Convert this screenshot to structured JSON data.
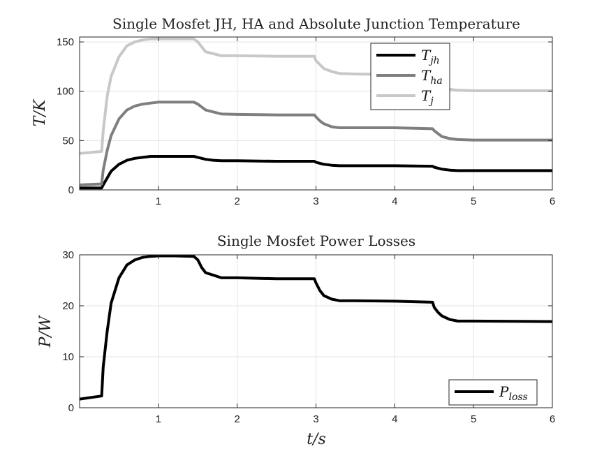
{
  "chart_data": [
    {
      "type": "line",
      "title": "Single Mosfet JH, HA and Absolute Junction Temperature",
      "ylabel": "T/K",
      "xlabel": "",
      "xlim": [
        0,
        6
      ],
      "ylim": [
        0,
        155
      ],
      "xticks": [
        1,
        2,
        3,
        4,
        5,
        6
      ],
      "yticks": [
        0,
        50,
        100,
        150
      ],
      "grid": true,
      "legend_position": "top-right",
      "series": [
        {
          "name": "T_jh",
          "label_main": "T",
          "label_sub": "jh",
          "color": "#000000",
          "x": [
            0,
            0.28,
            0.3,
            0.4,
            0.5,
            0.6,
            0.7,
            0.8,
            0.9,
            1.0,
            1.2,
            1.45,
            1.5,
            1.55,
            1.6,
            1.7,
            1.8,
            2.0,
            2.5,
            2.98,
            3.0,
            3.05,
            3.1,
            3.2,
            3.3,
            3.5,
            4.0,
            4.48,
            4.5,
            4.55,
            4.6,
            4.7,
            4.8,
            5.0,
            6.0
          ],
          "y": [
            2,
            2,
            5,
            19,
            26,
            30,
            32,
            33,
            34,
            34,
            34,
            34,
            33,
            32,
            31,
            30,
            29.5,
            29.5,
            29,
            29,
            28,
            27,
            26,
            25,
            24.5,
            24.5,
            24.5,
            24,
            23,
            22,
            21,
            20,
            19.5,
            19.5,
            19.5
          ]
        },
        {
          "name": "T_ha",
          "label_main": "T",
          "label_sub": "ha",
          "color": "#7f7f7f",
          "x": [
            0,
            0.28,
            0.3,
            0.35,
            0.4,
            0.5,
            0.6,
            0.7,
            0.8,
            0.9,
            1.0,
            1.2,
            1.45,
            1.5,
            1.55,
            1.6,
            1.7,
            1.8,
            2.0,
            2.5,
            2.98,
            3.0,
            3.05,
            3.1,
            3.2,
            3.3,
            3.5,
            4.0,
            4.48,
            4.5,
            4.55,
            4.6,
            4.7,
            4.8,
            5.0,
            6.0
          ],
          "y": [
            5,
            6,
            20,
            40,
            55,
            72,
            81,
            85,
            87,
            88,
            89,
            89,
            89,
            87,
            84,
            81,
            79,
            77,
            76.5,
            76,
            76,
            74,
            70,
            67,
            64,
            63,
            63,
            63,
            62,
            60,
            57,
            54,
            52,
            51,
            50.5,
            50.5
          ]
        },
        {
          "name": "T_j",
          "label_main": "T",
          "label_sub": "j",
          "color": "#c8c8c8",
          "x": [
            0,
            0.28,
            0.3,
            0.35,
            0.4,
            0.5,
            0.6,
            0.7,
            0.8,
            0.9,
            1.0,
            1.2,
            1.45,
            1.5,
            1.55,
            1.6,
            1.7,
            1.8,
            2.0,
            2.5,
            2.98,
            3.0,
            3.05,
            3.1,
            3.2,
            3.3,
            3.5,
            4.0,
            4.48,
            4.5,
            4.55,
            4.6,
            4.7,
            4.8,
            5.0,
            6.0
          ],
          "y": [
            37,
            39,
            60,
            95,
            115,
            135,
            146,
            150,
            152,
            153,
            153,
            153,
            153,
            150,
            145,
            140,
            138,
            136,
            136,
            135.5,
            135.5,
            131,
            127,
            123,
            120,
            118,
            117.5,
            117,
            116.5,
            111,
            107,
            104,
            102,
            101,
            100.5,
            100.5
          ]
        }
      ]
    },
    {
      "type": "line",
      "title": "Single Mosfet Power Losses",
      "ylabel": "P/W",
      "xlabel": "t/s",
      "xlim": [
        0,
        6
      ],
      "ylim": [
        0,
        30
      ],
      "xticks": [
        1,
        2,
        3,
        4,
        5,
        6
      ],
      "yticks": [
        0,
        10,
        20,
        30
      ],
      "grid": true,
      "legend_position": "bottom-right",
      "series": [
        {
          "name": "P_loss",
          "label_main": "P",
          "label_sub": "loss",
          "color": "#000000",
          "x": [
            0,
            0.28,
            0.3,
            0.35,
            0.4,
            0.5,
            0.6,
            0.7,
            0.8,
            0.9,
            1.0,
            1.2,
            1.45,
            1.5,
            1.55,
            1.6,
            1.7,
            1.8,
            2.0,
            2.5,
            2.98,
            3.0,
            3.05,
            3.1,
            3.2,
            3.3,
            3.5,
            4.0,
            4.48,
            4.5,
            4.55,
            4.6,
            4.7,
            4.8,
            5.0,
            6.0
          ],
          "y": [
            1.7,
            2.3,
            8,
            15,
            20.5,
            25.5,
            28,
            29,
            29.5,
            29.7,
            29.8,
            29.8,
            29.7,
            29,
            27.5,
            26.5,
            26,
            25.5,
            25.5,
            25.3,
            25.3,
            24.5,
            23,
            22,
            21.3,
            21,
            21,
            20.9,
            20.7,
            19.7,
            18.7,
            18,
            17.3,
            17,
            17,
            16.9
          ]
        }
      ]
    }
  ]
}
